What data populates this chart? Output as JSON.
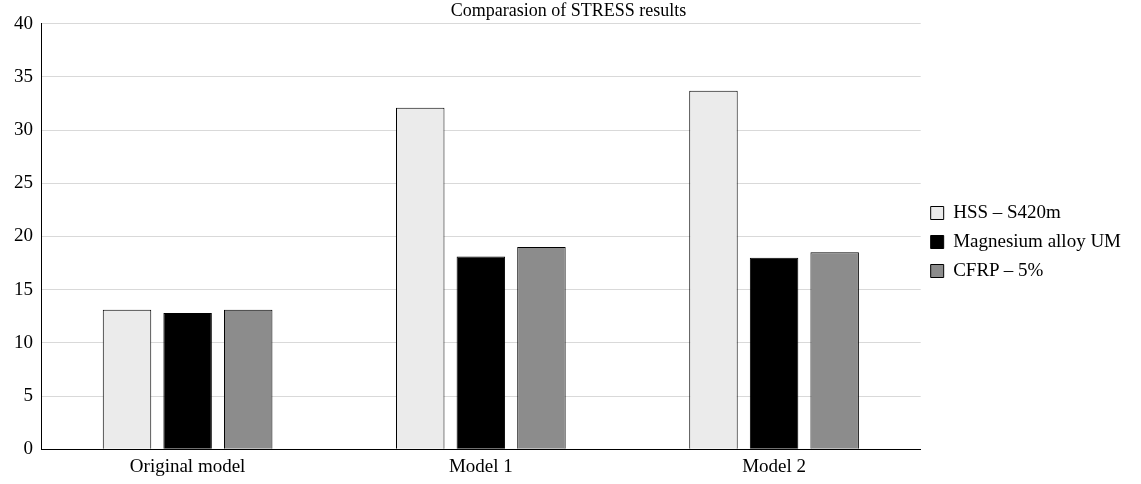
{
  "chart_data": {
    "type": "bar",
    "title": "Comparasion of STRESS results",
    "categories": [
      "Original model",
      "Model 1",
      "Model 2"
    ],
    "series": [
      {
        "name": "HSS – S420m",
        "color": "#ebebeb",
        "values": [
          13.1,
          32.1,
          33.7
        ]
      },
      {
        "name": "Magnesium alloy UM",
        "color": "#000000",
        "values": [
          12.8,
          18.1,
          18.0
        ]
      },
      {
        "name": "CFRP – 5%",
        "color": "#8c8c8c",
        "values": [
          13.1,
          19.0,
          18.5
        ]
      }
    ],
    "ylim": [
      0,
      40
    ],
    "yticks": [
      0,
      5,
      10,
      15,
      20,
      25,
      30,
      35,
      40
    ],
    "grid": "y",
    "legend": "right"
  }
}
